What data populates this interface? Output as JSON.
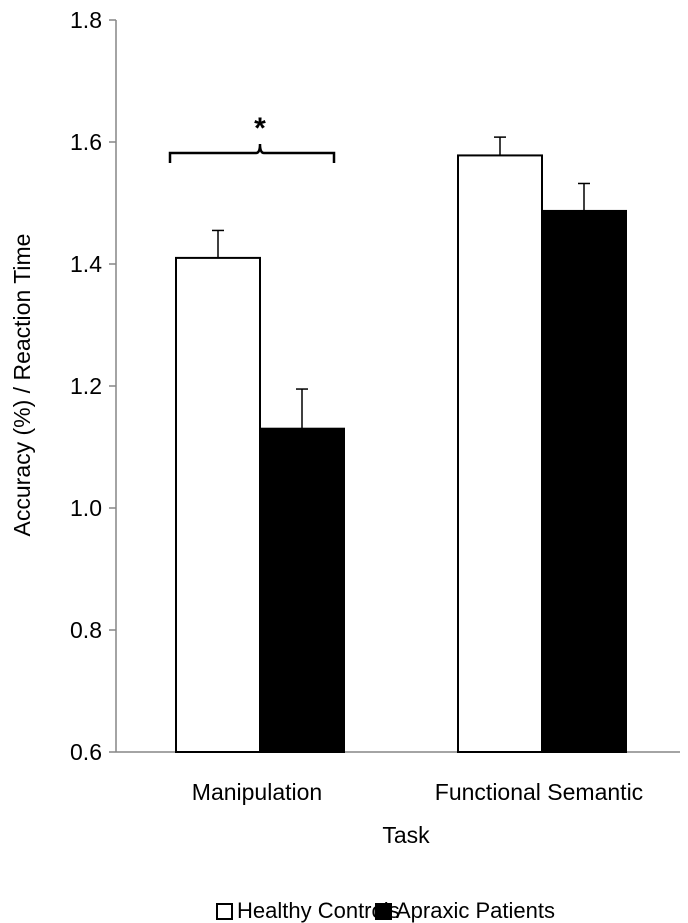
{
  "chart_data": {
    "type": "bar",
    "title": "",
    "xlabel": "Task",
    "ylabel": "Accuracy (%) / Reaction Time",
    "ylim": [
      0.6,
      1.8
    ],
    "yticks": [
      "0.6",
      "0.8",
      "1.0",
      "1.2",
      "1.4",
      "1.6",
      "1.8"
    ],
    "categories": [
      "Manipulation",
      "Functional Semantic"
    ],
    "series": [
      {
        "name": "Healthy Controls",
        "values": [
          1.41,
          1.578
        ],
        "errors": [
          0.045,
          0.03
        ],
        "color": "#ffffff"
      },
      {
        "name": "Apraxic Patients",
        "values": [
          1.13,
          1.487
        ],
        "errors": [
          0.065,
          0.045
        ],
        "color": "#000000"
      }
    ],
    "annotations": [
      {
        "text": "*",
        "category": "Manipulation"
      }
    ],
    "grid": false,
    "legend_position": "bottom"
  }
}
